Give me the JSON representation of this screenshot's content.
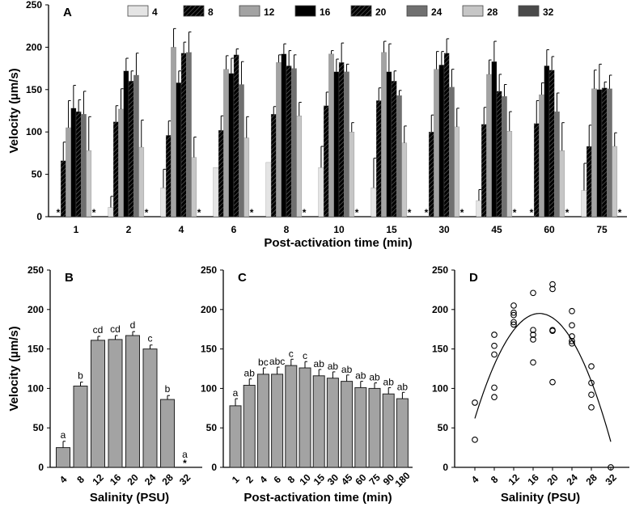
{
  "chart_data": [
    {
      "panel": "A",
      "type": "bar",
      "ylabel": "Velocity (µm/s)",
      "xlabel": "Post-activation time (min)",
      "ylim": [
        0,
        250
      ],
      "yticks": [
        0,
        50,
        100,
        150,
        200,
        250
      ],
      "categories": [
        "1",
        "2",
        "4",
        "6",
        "8",
        "10",
        "15",
        "30",
        "45",
        "60",
        "75"
      ],
      "legend_title": "Salinity (PSU)",
      "legend_placement": "top",
      "series": [
        {
          "name": "4",
          "color": "#e4e4e4",
          "hatch": false,
          "values": [
            0,
            11,
            34,
            58,
            64,
            58,
            34,
            0,
            19,
            0,
            31
          ],
          "err": [
            0,
            13,
            22,
            0,
            0,
            25,
            35,
            0,
            13,
            0,
            32
          ]
        },
        {
          "name": "8",
          "color": "#5a5a5a",
          "hatch": true,
          "values": [
            66,
            112,
            96,
            102,
            121,
            131,
            137,
            100,
            109,
            110,
            83
          ],
          "err": [
            22,
            19,
            17,
            17,
            9,
            16,
            15,
            20,
            20,
            27,
            25
          ]
        },
        {
          "name": "12",
          "color": "#a3a3a3",
          "hatch": false,
          "values": [
            105,
            127,
            200,
            174,
            182,
            192,
            194,
            174,
            168,
            144,
            151
          ],
          "err": [
            32,
            24,
            22,
            16,
            9,
            4,
            13,
            21,
            17,
            14,
            22
          ]
        },
        {
          "name": "16",
          "color": "#000000",
          "hatch": false,
          "values": [
            128,
            172,
            158,
            169,
            192,
            171,
            171,
            179,
            183,
            178,
            150
          ],
          "err": [
            27,
            15,
            14,
            18,
            12,
            15,
            33,
            16,
            24,
            19,
            30
          ]
        },
        {
          "name": "20",
          "color": "#dcdcdc",
          "hatch": true,
          "values": [
            124,
            160,
            193,
            191,
            178,
            182,
            160,
            193,
            148,
            173,
            152
          ],
          "err": [
            14,
            12,
            13,
            7,
            18,
            23,
            12,
            17,
            20,
            16,
            7
          ]
        },
        {
          "name": "24",
          "color": "#707070",
          "hatch": false,
          "values": [
            121,
            167,
            194,
            156,
            175,
            171,
            143,
            153,
            142,
            124,
            151
          ],
          "err": [
            27,
            26,
            24,
            27,
            16,
            9,
            6,
            21,
            14,
            22,
            16
          ]
        },
        {
          "name": "28",
          "color": "#c6c6c6",
          "hatch": false,
          "values": [
            78,
            82,
            70,
            93,
            119,
            100,
            87,
            106,
            101,
            78,
            83
          ],
          "err": [
            40,
            32,
            24,
            25,
            16,
            11,
            20,
            22,
            23,
            33,
            16
          ]
        },
        {
          "name": "32",
          "color": "#4a4a4a",
          "hatch": false,
          "values": [
            0,
            0,
            0,
            0,
            0,
            0,
            0,
            0,
            0,
            0,
            0
          ],
          "err": [
            0,
            0,
            0,
            0,
            0,
            0,
            0,
            0,
            0,
            0,
            0
          ]
        }
      ],
      "zero_markers": [
        [
          "4",
          "32"
        ],
        [
          "32"
        ],
        [
          "32"
        ],
        [
          "32"
        ],
        [
          "32"
        ],
        [
          "32"
        ],
        [
          "32"
        ],
        [
          "4",
          "32"
        ],
        [
          "32"
        ],
        [
          "4",
          "32"
        ],
        [
          "32"
        ]
      ],
      "marker_symbol": "*"
    },
    {
      "panel": "B",
      "type": "bar",
      "ylabel": "Velocity (µm/s)",
      "xlabel": "Salinity (PSU)",
      "ylim": [
        0,
        250
      ],
      "yticks": [
        0,
        50,
        100,
        150,
        200,
        250
      ],
      "categories": [
        "4",
        "8",
        "12",
        "16",
        "20",
        "24",
        "28",
        "32"
      ],
      "values": [
        25,
        103,
        161,
        162,
        167,
        150,
        86,
        0
      ],
      "err": [
        8,
        5,
        5,
        5,
        5,
        5,
        5,
        0
      ],
      "letters": [
        "a",
        "b",
        "cd",
        "cd",
        "d",
        "c",
        "b",
        "a"
      ],
      "color": "#a3a3a3",
      "marker_symbol": "*"
    },
    {
      "panel": "C",
      "type": "bar",
      "xlabel": "Post-activation time (min)",
      "ylim": [
        0,
        250
      ],
      "yticks": [
        0,
        50,
        100,
        150,
        200,
        250
      ],
      "categories": [
        "1",
        "2",
        "4",
        "6",
        "8",
        "10",
        "15",
        "30",
        "45",
        "60",
        "75",
        "90",
        "180"
      ],
      "values": [
        78,
        104,
        118,
        118,
        129,
        126,
        116,
        113,
        109,
        101,
        100,
        93,
        87
      ],
      "err": [
        9,
        8,
        8,
        9,
        8,
        8,
        8,
        8,
        8,
        8,
        7,
        8,
        8
      ],
      "letters": [
        "a",
        "ab",
        "bc",
        "abc",
        "c",
        "c",
        "ab",
        "ab",
        "ab",
        "ab",
        "ab",
        "ab",
        "ab"
      ],
      "color": "#a3a3a3"
    },
    {
      "panel": "D",
      "type": "scatter",
      "xlabel": "Salinity (PSU)",
      "ylim": [
        0,
        250
      ],
      "yticks": [
        0,
        50,
        100,
        150,
        200,
        250
      ],
      "xticks": [
        4,
        8,
        12,
        16,
        20,
        24,
        28,
        32
      ],
      "xlim": [
        2,
        35
      ],
      "points": [
        [
          4,
          82
        ],
        [
          4,
          35
        ],
        [
          8,
          168
        ],
        [
          8,
          154
        ],
        [
          8,
          143
        ],
        [
          8,
          101
        ],
        [
          8,
          89
        ],
        [
          12,
          205
        ],
        [
          12,
          196
        ],
        [
          12,
          193
        ],
        [
          12,
          184
        ],
        [
          12,
          181
        ],
        [
          16,
          221
        ],
        [
          16,
          174
        ],
        [
          16,
          168
        ],
        [
          16,
          162
        ],
        [
          16,
          133
        ],
        [
          20,
          232
        ],
        [
          20,
          226
        ],
        [
          20,
          174
        ],
        [
          20,
          173
        ],
        [
          20,
          108
        ],
        [
          24,
          198
        ],
        [
          24,
          180
        ],
        [
          24,
          166
        ],
        [
          24,
          160
        ],
        [
          24,
          157
        ],
        [
          28,
          128
        ],
        [
          28,
          107
        ],
        [
          28,
          92
        ],
        [
          28,
          76
        ],
        [
          32,
          0
        ]
      ],
      "fit": {
        "type": "quadratic",
        "coef": [
          -30.1,
          26.02,
          -0.752
        ],
        "xrange": [
          4,
          32
        ]
      }
    }
  ]
}
